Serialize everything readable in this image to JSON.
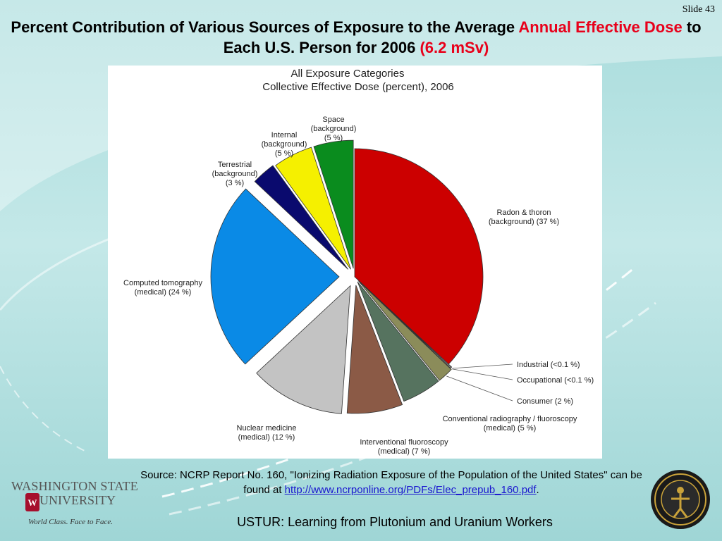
{
  "slide_number": "Slide 43",
  "title": {
    "part1": "Percent Contribution of Various Sources of Exposure to the Average ",
    "part2_red": "Annual Effective Dose",
    "part3": " to Each U.S. Person for 2006 ",
    "part4_red": "(6.2 mSv)"
  },
  "chart_data": {
    "type": "pie",
    "title": "All Exposure Categories",
    "subtitle": "Collective Effective Dose (percent), 2006",
    "slices": [
      {
        "label_lines": [
          "Radon & thoron",
          "(background) (37 %)"
        ],
        "value": 37,
        "color": "#cc0000"
      },
      {
        "label_lines": [
          "Industrial (<0.1 %)"
        ],
        "value": 0.1,
        "color": "#f2f2f2"
      },
      {
        "label_lines": [
          "Occupational (<0.1 %)"
        ],
        "value": 0.1,
        "color": "#f2f2f2"
      },
      {
        "label_lines": [
          "Consumer (2 %)"
        ],
        "value": 2,
        "color": "#8b8c5a"
      },
      {
        "label_lines": [
          "Conventional radiography / fluoroscopy",
          "(medical) (5 %)"
        ],
        "value": 5,
        "color": "#56735f"
      },
      {
        "label_lines": [
          "Interventional fluoroscopy",
          "(medical) (7 %)"
        ],
        "value": 7,
        "color": "#8b5a46"
      },
      {
        "label_lines": [
          "Nuclear medicine",
          "(medical) (12 %)"
        ],
        "value": 12,
        "color": "#c3c3c3"
      },
      {
        "label_lines": [
          "Computed tomography",
          "(medical) (24 %)"
        ],
        "value": 24,
        "color": "#0a8ae6"
      },
      {
        "label_lines": [
          "Terrestrial",
          "(background)",
          "(3 %)"
        ],
        "value": 3,
        "color": "#0a0a6e"
      },
      {
        "label_lines": [
          "Internal",
          "(background)",
          "(5 %)"
        ],
        "value": 5,
        "color": "#f5f000"
      },
      {
        "label_lines": [
          "Space",
          "(background)",
          "(5 %)"
        ],
        "value": 5,
        "color": "#0a8c1e"
      }
    ]
  },
  "source": {
    "text": "Source: NCRP Report No. 160, \"Ionizing Radiation Exposure of the Population of the United States\" can be found at ",
    "link": "http://www.ncrponline.org/PDFs/Elec_prepub_160.pdf",
    "end": "."
  },
  "footer": "USTUR: Learning from Plutonium and Uranium Workers",
  "logo": {
    "line1": "WASHINGTON STATE",
    "line2": "UNIVERSITY",
    "tagline": "World Class. Face to Face."
  }
}
